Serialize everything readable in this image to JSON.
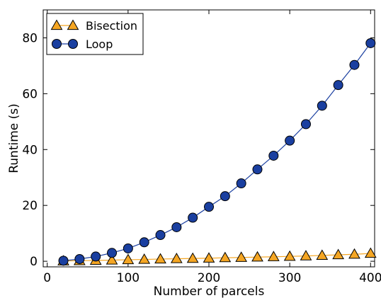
{
  "chart_data": {
    "type": "line",
    "xlabel": "Number of parcels",
    "ylabel": "Runtime (s)",
    "xlim": [
      -5,
      405
    ],
    "ylim": [
      -2,
      90
    ],
    "xticks": [
      0,
      100,
      200,
      300,
      400
    ],
    "yticks": [
      0,
      20,
      40,
      60,
      80
    ],
    "grid": false,
    "legend_position": "top-left",
    "x": [
      20,
      40,
      60,
      80,
      100,
      120,
      140,
      160,
      180,
      200,
      220,
      240,
      260,
      280,
      300,
      320,
      340,
      360,
      380,
      400
    ],
    "series": [
      {
        "name": "Bisection",
        "marker": "triangle",
        "color": "#f5a623",
        "line_color": "#f5a623",
        "values": [
          0.1,
          0.2,
          0.3,
          0.4,
          0.55,
          0.65,
          0.8,
          0.9,
          1.0,
          1.1,
          1.25,
          1.35,
          1.5,
          1.6,
          1.75,
          1.9,
          2.1,
          2.3,
          2.5,
          2.8
        ]
      },
      {
        "name": "Loop",
        "marker": "circle",
        "color": "#1a3fa0",
        "line_color": "#1a3fa0",
        "values": [
          0.2,
          0.8,
          1.7,
          3.0,
          4.6,
          6.8,
          9.4,
          12.2,
          15.6,
          19.5,
          23.3,
          27.9,
          32.9,
          37.8,
          43.2,
          49.1,
          55.7,
          63.1,
          70.3,
          78.1
        ]
      }
    ]
  }
}
